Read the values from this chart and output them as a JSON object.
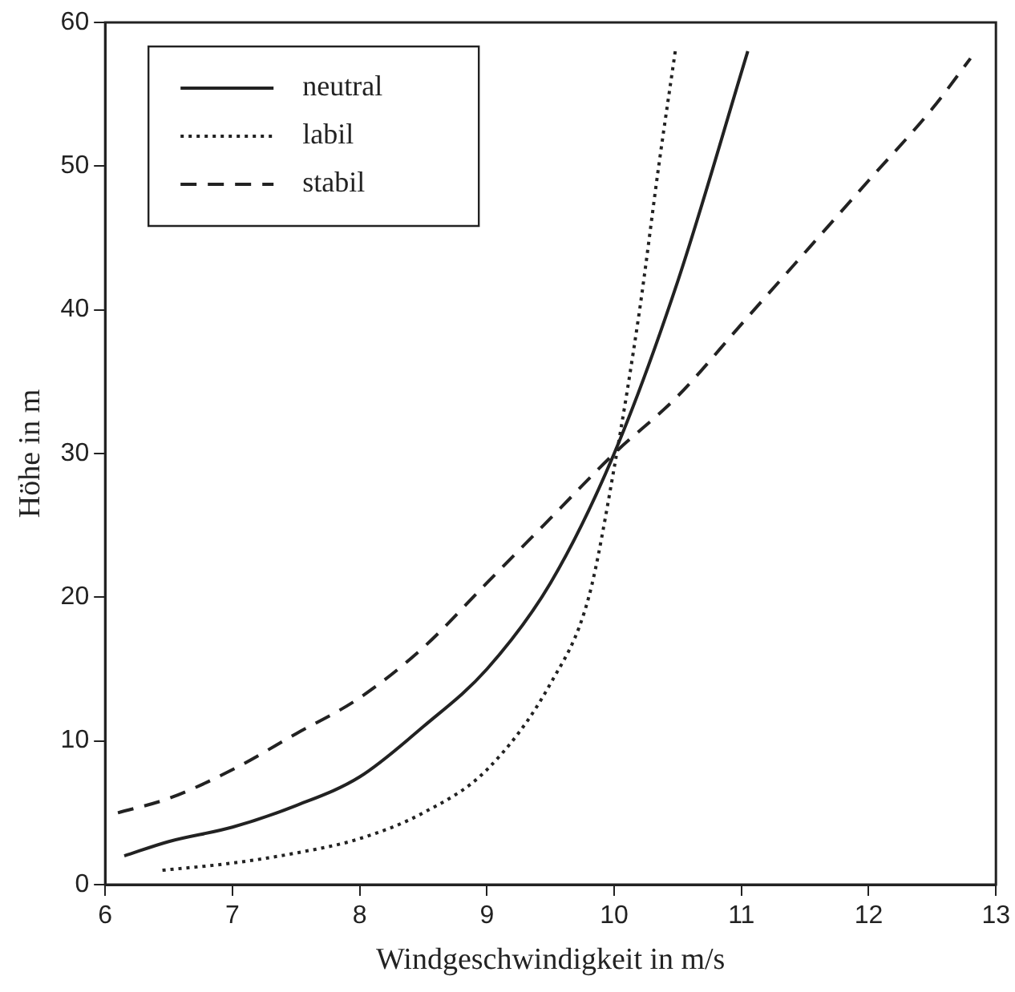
{
  "chart_data": {
    "type": "line",
    "xlabel": "Windgeschwindigkeit in m/s",
    "ylabel": "Höhe in m",
    "xlim": [
      6,
      13
    ],
    "xticks": [
      6,
      7,
      8,
      9,
      10,
      11,
      12,
      13
    ],
    "ylim": [
      0,
      60
    ],
    "yticks": [
      0,
      10,
      20,
      30,
      40,
      50,
      60
    ],
    "grid": false,
    "legend": "top left",
    "marker": "none",
    "series": [
      {
        "name": "neutral",
        "color": "#222222",
        "line_style": "solid",
        "x": [
          6.15,
          6.5,
          7,
          7.5,
          8,
          8.5,
          9,
          9.5,
          10,
          10.5,
          11.05
        ],
        "values": [
          2,
          3,
          4,
          5.5,
          7.5,
          11,
          15,
          21,
          30,
          42,
          58
        ]
      },
      {
        "name": "labil",
        "color": "#222222",
        "line_style": "dotted",
        "x": [
          6.45,
          7,
          7.5,
          8,
          8.5,
          9,
          9.5,
          9.8,
          10,
          10.2,
          10.35,
          10.48
        ],
        "values": [
          1,
          1.5,
          2.2,
          3.2,
          5,
          8,
          14,
          20,
          29,
          40,
          50,
          58
        ]
      },
      {
        "name": "stabil",
        "color": "#222222",
        "line_style": "dashed",
        "x": [
          6.1,
          6.5,
          7,
          7.5,
          8,
          8.5,
          9,
          9.5,
          10,
          10.5,
          11,
          11.5,
          12,
          12.5,
          12.8
        ],
        "values": [
          5,
          6,
          8,
          10.5,
          13,
          16.5,
          21,
          25.5,
          30,
          34,
          39,
          44,
          49,
          54,
          57.5
        ]
      }
    ]
  }
}
